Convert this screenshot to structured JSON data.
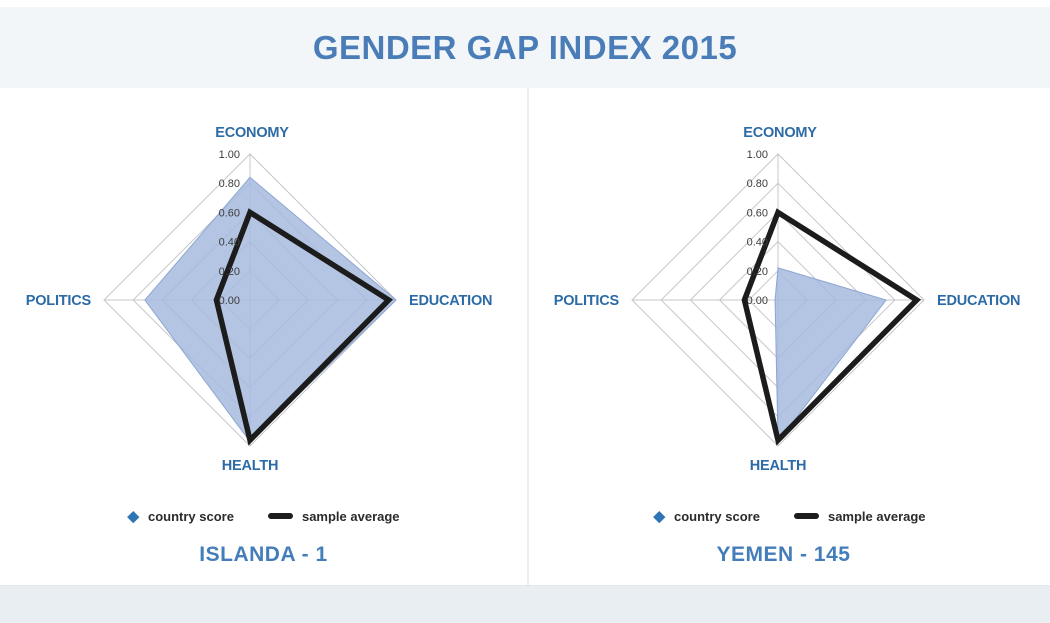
{
  "page": {
    "title": "GENDER GAP INDEX 2015"
  },
  "colors": {
    "title": "#4a7db8",
    "axis_label": "#2c6ba6",
    "country_title": "#447eba",
    "tick": "#3d3d3d",
    "country_fill": "#a4b8de",
    "country_fill_edge": "#8da5d2",
    "average_line": "#1c1c1c",
    "grid": "#c5c7ca",
    "legend_diamond": "#2f74b5",
    "legend_text": "#2b2b2b"
  },
  "legend": {
    "country_score": "country score",
    "sample_average": "sample average"
  },
  "chart_data": [
    {
      "type": "radar",
      "title": "ISLANDA - 1",
      "categories": [
        "ECONOMY",
        "EDUCATION",
        "HEALTH",
        "POLITICS"
      ],
      "axis_order": [
        "top",
        "right",
        "bottom",
        "left"
      ],
      "tick_labels": [
        "1.00",
        "0.80",
        "0.60",
        "0.40",
        "0.20",
        "0.00"
      ],
      "range": [
        0,
        1
      ],
      "grid_rings": 5,
      "legend_position": "bottom",
      "series": [
        {
          "name": "country score",
          "style": "filled-area",
          "values": [
            0.84,
            1.0,
            0.97,
            0.72
          ]
        },
        {
          "name": "sample average",
          "style": "thick-line",
          "values": [
            0.6,
            0.95,
            0.96,
            0.23
          ]
        }
      ]
    },
    {
      "type": "radar",
      "title": "YEMEN - 145",
      "categories": [
        "ECONOMY",
        "EDUCATION",
        "HEALTH",
        "POLITICS"
      ],
      "axis_order": [
        "top",
        "right",
        "bottom",
        "left"
      ],
      "tick_labels": [
        "1.00",
        "0.80",
        "0.60",
        "0.40",
        "0.20",
        "0.00"
      ],
      "range": [
        0,
        1
      ],
      "grid_rings": 5,
      "legend_position": "bottom",
      "series": [
        {
          "name": "country score",
          "style": "filled-area",
          "values": [
            0.22,
            0.74,
            0.97,
            0.02
          ]
        },
        {
          "name": "sample average",
          "style": "thick-line",
          "values": [
            0.6,
            0.95,
            0.96,
            0.23
          ]
        }
      ]
    }
  ]
}
